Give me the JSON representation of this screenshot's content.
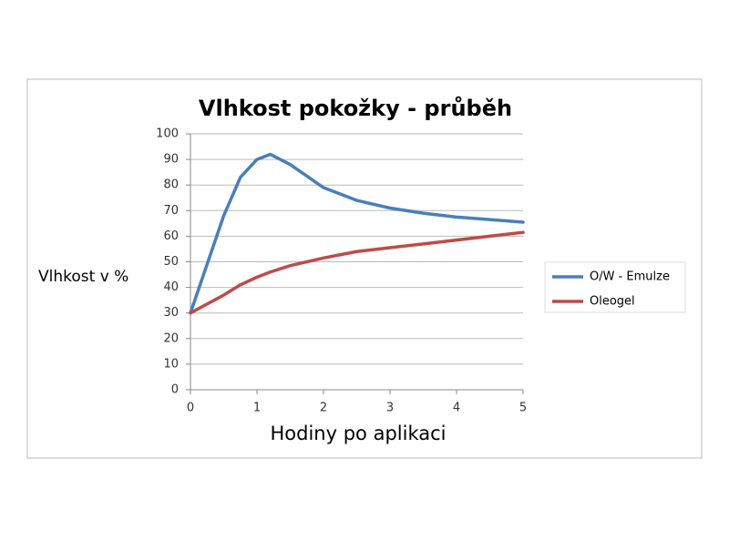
{
  "chart_data": {
    "type": "line",
    "title": "Vlhkost pokožky - průběh",
    "x_label": "Hodiny po aplikaci",
    "y_label": "Vlhkost v %",
    "x": [
      0,
      0.25,
      0.5,
      0.75,
      1,
      1.2,
      1.5,
      2,
      2.5,
      3,
      3.5,
      4,
      4.5,
      5
    ],
    "series": [
      {
        "name": "O/W - Emulze",
        "color": "#4a7ebb",
        "values": [
          30,
          49,
          68,
          83,
          90,
          92,
          88,
          79,
          74,
          71,
          69,
          67.5,
          66.5,
          65.5
        ]
      },
      {
        "name": "Oleogel",
        "color": "#be4b48",
        "values": [
          30,
          33.5,
          37,
          41,
          44,
          46,
          48.5,
          51.5,
          54,
          55.5,
          57,
          58.5,
          60,
          61.5
        ]
      }
    ],
    "xlim": [
      0,
      5
    ],
    "xticks": [
      0,
      1,
      2,
      3,
      4,
      5
    ],
    "ylim": [
      0,
      100
    ],
    "yticks": [
      0,
      10,
      20,
      30,
      40,
      50,
      60,
      70,
      80,
      90,
      100
    ],
    "grid": true,
    "legend": "right"
  }
}
